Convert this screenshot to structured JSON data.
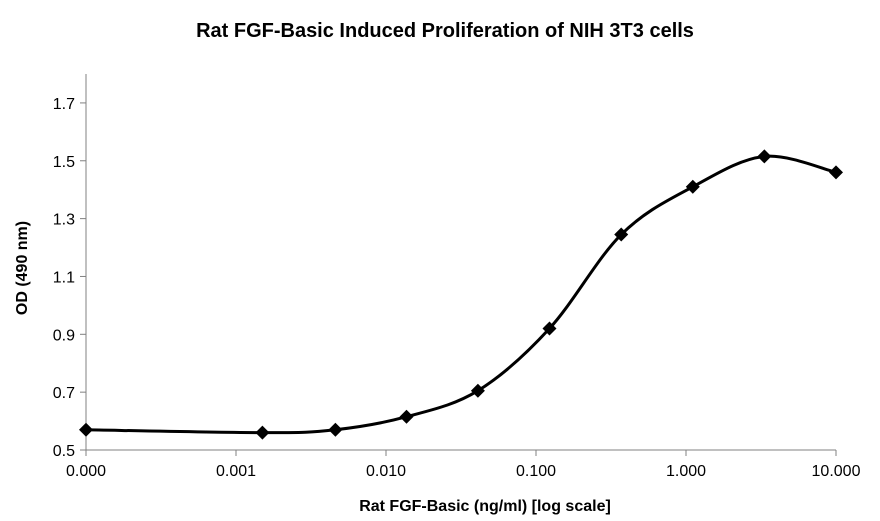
{
  "chart_data": {
    "type": "line",
    "title": "Rat FGF-Basic Induced Proliferation of NIH 3T3 cells",
    "xlabel": "Rat FGF-Basic (ng/ml) [log scale]",
    "ylabel": "OD (490 nm)",
    "x_scale": "log",
    "grid": false,
    "legend": "none",
    "x_tick_labels": [
      "0.000",
      "0.001",
      "0.010",
      "0.100",
      "1.000",
      "10.000"
    ],
    "x_tick_values": [
      0.0001,
      0.001,
      0.01,
      0.1,
      1,
      10
    ],
    "y_ticks": [
      0.5,
      0.7,
      0.9,
      1.1,
      1.3,
      1.5,
      1.7
    ],
    "y_tick_labels": [
      "0.5",
      "0.7",
      "0.9",
      "1.1",
      "1.3",
      "1.5",
      "1.7"
    ],
    "xlim": [
      0.0001,
      10
    ],
    "ylim": [
      0.5,
      1.8
    ],
    "series": [
      {
        "color": "#000000",
        "marker": "diamond",
        "x": [
          0.0001,
          0.0015,
          0.0046,
          0.0137,
          0.041,
          0.123,
          0.37,
          1.11,
          3.33,
          10
        ],
        "y": [
          0.57,
          0.56,
          0.57,
          0.615,
          0.705,
          0.92,
          1.245,
          1.41,
          1.515,
          1.46
        ]
      }
    ]
  }
}
